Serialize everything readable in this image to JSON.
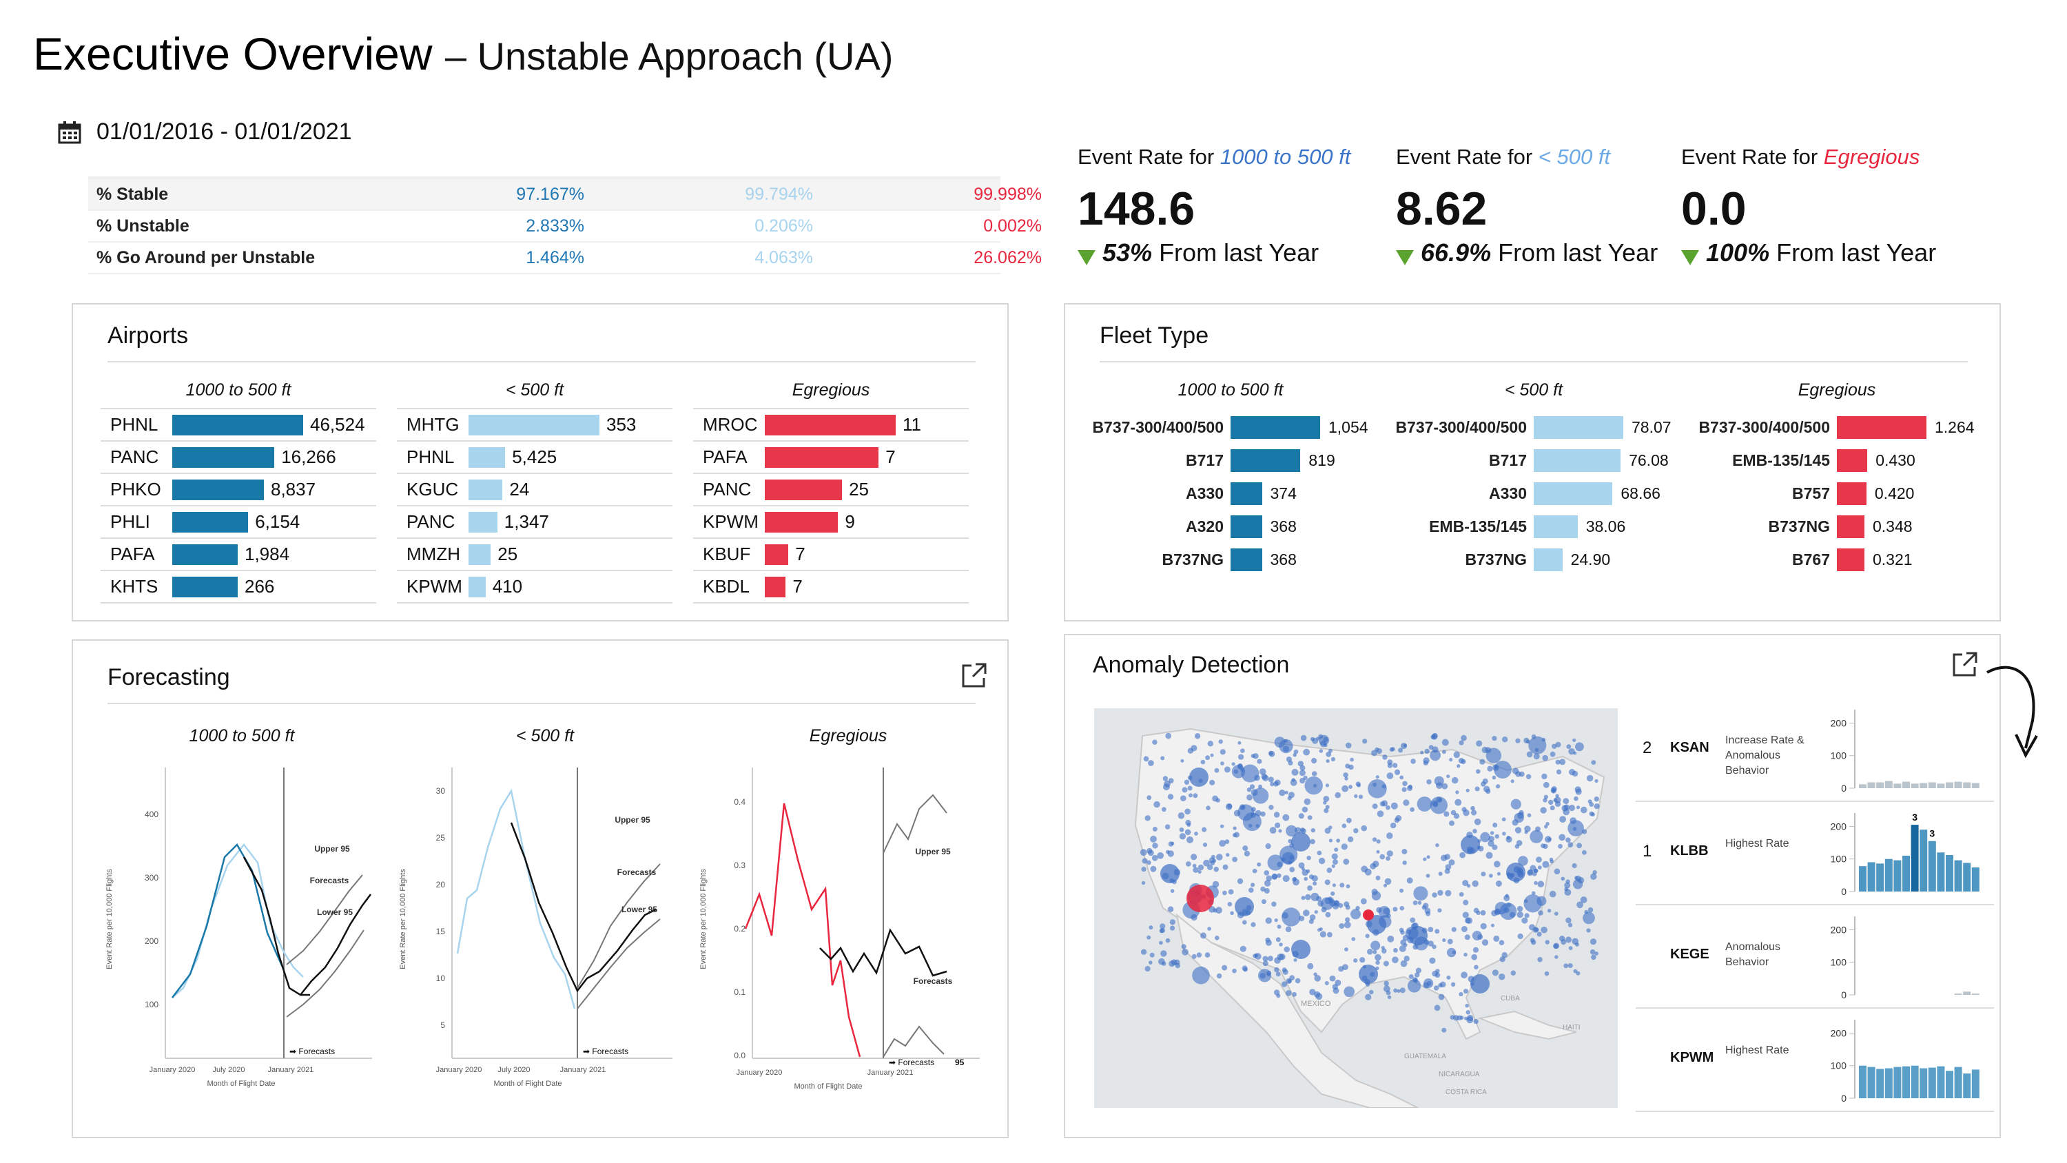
{
  "header": {
    "title": "Executive Overview",
    "subtitle": "– Unstable Approach (UA)",
    "date_range": "01/01/2016 - 01/01/2021"
  },
  "stats": {
    "rows": [
      {
        "label": "% Stable",
        "values": [
          "97.167%",
          "99.794%",
          "99.998%"
        ]
      },
      {
        "label": "% Unstable",
        "values": [
          "2.833%",
          "0.206%",
          "0.002%"
        ]
      },
      {
        "label": "% Go Around per Unstable",
        "values": [
          "1.464%",
          "4.063%",
          "26.062%"
        ]
      }
    ],
    "colors": [
      "#1f77b4",
      "#a7d3ee",
      "#e8263e"
    ]
  },
  "kpis": [
    {
      "prefix": "Event Rate for ",
      "range": "1000 to 500 ft",
      "rate": "148.6",
      "change": "53%",
      "change_suffix": " From last Year",
      "color": "#3a74c9"
    },
    {
      "prefix": "Event Rate for ",
      "range": "< 500 ft",
      "rate": "8.62",
      "change": "66.9%",
      "change_suffix": " From last Year",
      "color": "#6aa9e6"
    },
    {
      "prefix": "Event Rate for ",
      "range": "Egregious",
      "rate": "0.0",
      "change": "100%",
      "change_suffix": " From last Year",
      "color": "#e8263e"
    }
  ],
  "airports": {
    "title": "Airports",
    "columns": [
      {
        "header": "1000 to 500 ft",
        "color": "#1878a8",
        "rows": [
          {
            "code": "PHNL",
            "value": "46,524",
            "frac": 1.0
          },
          {
            "code": "PANC",
            "value": "16,266",
            "frac": 0.78
          },
          {
            "code": "PHKO",
            "value": "8,837",
            "frac": 0.7
          },
          {
            "code": "PHLI",
            "value": "6,154",
            "frac": 0.58
          },
          {
            "code": "PAFA",
            "value": "1,984",
            "frac": 0.5
          },
          {
            "code": "KHTS",
            "value": "266",
            "frac": 0.5
          }
        ]
      },
      {
        "header": "< 500 ft",
        "color": "#a8d4ee",
        "rows": [
          {
            "code": "MHTG",
            "value": "353",
            "frac": 1.0
          },
          {
            "code": "PHNL",
            "value": "5,425",
            "frac": 0.28
          },
          {
            "code": "KGUC",
            "value": "24",
            "frac": 0.26
          },
          {
            "code": "PANC",
            "value": "1,347",
            "frac": 0.22
          },
          {
            "code": "MMZH",
            "value": "25",
            "frac": 0.17
          },
          {
            "code": "KPWM",
            "value": "410",
            "frac": 0.13
          }
        ]
      },
      {
        "header": "Egregious",
        "color": "#e8374a",
        "rows": [
          {
            "code": "MROC",
            "value": "11",
            "frac": 1.0
          },
          {
            "code": "PAFA",
            "value": "7",
            "frac": 0.87
          },
          {
            "code": "PANC",
            "value": "25",
            "frac": 0.59
          },
          {
            "code": "KPWM",
            "value": "9",
            "frac": 0.56
          },
          {
            "code": "KBUF",
            "value": "7",
            "frac": 0.18
          },
          {
            "code": "KBDL",
            "value": "7",
            "frac": 0.16
          }
        ]
      }
    ]
  },
  "fleet": {
    "title": "Fleet Type",
    "columns": [
      {
        "header": "1000 to 500 ft",
        "color": "#1878a8",
        "rows": [
          {
            "code": "B737-300/400/500",
            "value": "1,054",
            "frac": 1.0
          },
          {
            "code": "B717",
            "value": "819",
            "frac": 0.78
          },
          {
            "code": "A330",
            "value": "374",
            "frac": 0.35
          },
          {
            "code": "A320",
            "value": "368",
            "frac": 0.35
          },
          {
            "code": "B737NG",
            "value": "368",
            "frac": 0.35
          }
        ]
      },
      {
        "header": "< 500 ft",
        "color": "#a8d4ee",
        "rows": [
          {
            "code": "B737-300/400/500",
            "value": "78.07",
            "frac": 1.0
          },
          {
            "code": "B717",
            "value": "76.08",
            "frac": 0.97
          },
          {
            "code": "A330",
            "value": "68.66",
            "frac": 0.88
          },
          {
            "code": "EMB-135/145",
            "value": "38.06",
            "frac": 0.49
          },
          {
            "code": "B737NG",
            "value": "24.90",
            "frac": 0.32
          }
        ]
      },
      {
        "header": "Egregious",
        "color": "#e8374a",
        "rows": [
          {
            "code": "B737-300/400/500",
            "value": "1.264",
            "frac": 1.0
          },
          {
            "code": "EMB-135/145",
            "value": "0.430",
            "frac": 0.34
          },
          {
            "code": "B757",
            "value": "0.420",
            "frac": 0.33
          },
          {
            "code": "B737NG",
            "value": "0.348",
            "frac": 0.28
          },
          {
            "code": "B767",
            "value": "0.321",
            "frac": 0.25
          }
        ]
      }
    ]
  },
  "forecasting": {
    "title": "Forecasting",
    "charts": [
      {
        "header": "1000 to 500 ft",
        "ylabel": "Event Rate per 10,000 Flights",
        "xlabel": "Month of Flight Date",
        "yticks": [
          "400",
          "300",
          "200",
          "100"
        ],
        "xticks": [
          "January 2020",
          "July 2020",
          "January 2021"
        ],
        "annotations": [
          "Upper 95",
          "Forecasts",
          "Lower 95",
          "Forecasts"
        ]
      },
      {
        "header": "< 500 ft",
        "ylabel": "Event Rate per 10,000 Flights",
        "xlabel": "Month of Flight Date",
        "yticks": [
          "30",
          "25",
          "20",
          "15",
          "10",
          "5"
        ],
        "xticks": [
          "January 2020",
          "July 2020",
          "January 2021"
        ],
        "annotations": [
          "Upper 95",
          "Forecasts",
          "Lower 95",
          "Forecasts"
        ]
      },
      {
        "header": "Egregious",
        "ylabel": "Event Rate per 10,000 Flights",
        "xlabel": "Month of Flight Date",
        "yticks": [
          "0.4",
          "0.3",
          "0.2",
          "0.1",
          "0.0"
        ],
        "xticks": [
          "January 2020",
          "January 2021"
        ],
        "annotations": [
          "Upper 95",
          "Forecasts",
          "Forecasts",
          "95"
        ]
      }
    ]
  },
  "anomaly": {
    "title": "Anomaly Detection",
    "map_labels": [
      "MEXICO",
      "CUBA",
      "HAITI",
      "GUATEMALA",
      "NICARAGUA",
      "COSTA RICA"
    ],
    "rows": [
      {
        "rank": "2",
        "code": "KSAN",
        "desc": "Increase Rate & Anomalous Behavior",
        "yticks": [
          "200",
          "100",
          "0"
        ],
        "values": [
          12,
          18,
          18,
          22,
          14,
          20,
          14,
          16,
          18,
          14,
          18,
          20,
          18,
          16,
          14
        ]
      },
      {
        "rank": "1",
        "code": "KLBB",
        "desc": "Highest Rate",
        "yticks": [
          "200",
          "100",
          "0"
        ],
        "values": [
          78,
          90,
          86,
          100,
          96,
          110,
          205,
          190,
          155,
          120,
          112,
          96,
          88,
          74,
          62
        ],
        "labels": [
          "3",
          "3"
        ]
      },
      {
        "rank": "",
        "code": "KEGE",
        "desc": "Anomalous Behavior",
        "yticks": [
          "200",
          "100",
          "0"
        ],
        "values": [
          0,
          0,
          0,
          0,
          0,
          0,
          0,
          0,
          0,
          0,
          0,
          4,
          10,
          4,
          6
        ]
      },
      {
        "rank": "",
        "code": "KPWM",
        "desc": "Highest Rate",
        "yticks": [
          "200",
          "100",
          "0"
        ],
        "values": [
          100,
          96,
          90,
          92,
          96,
          98,
          100,
          92,
          94,
          98,
          84,
          96,
          76,
          88,
          72
        ]
      }
    ]
  }
}
